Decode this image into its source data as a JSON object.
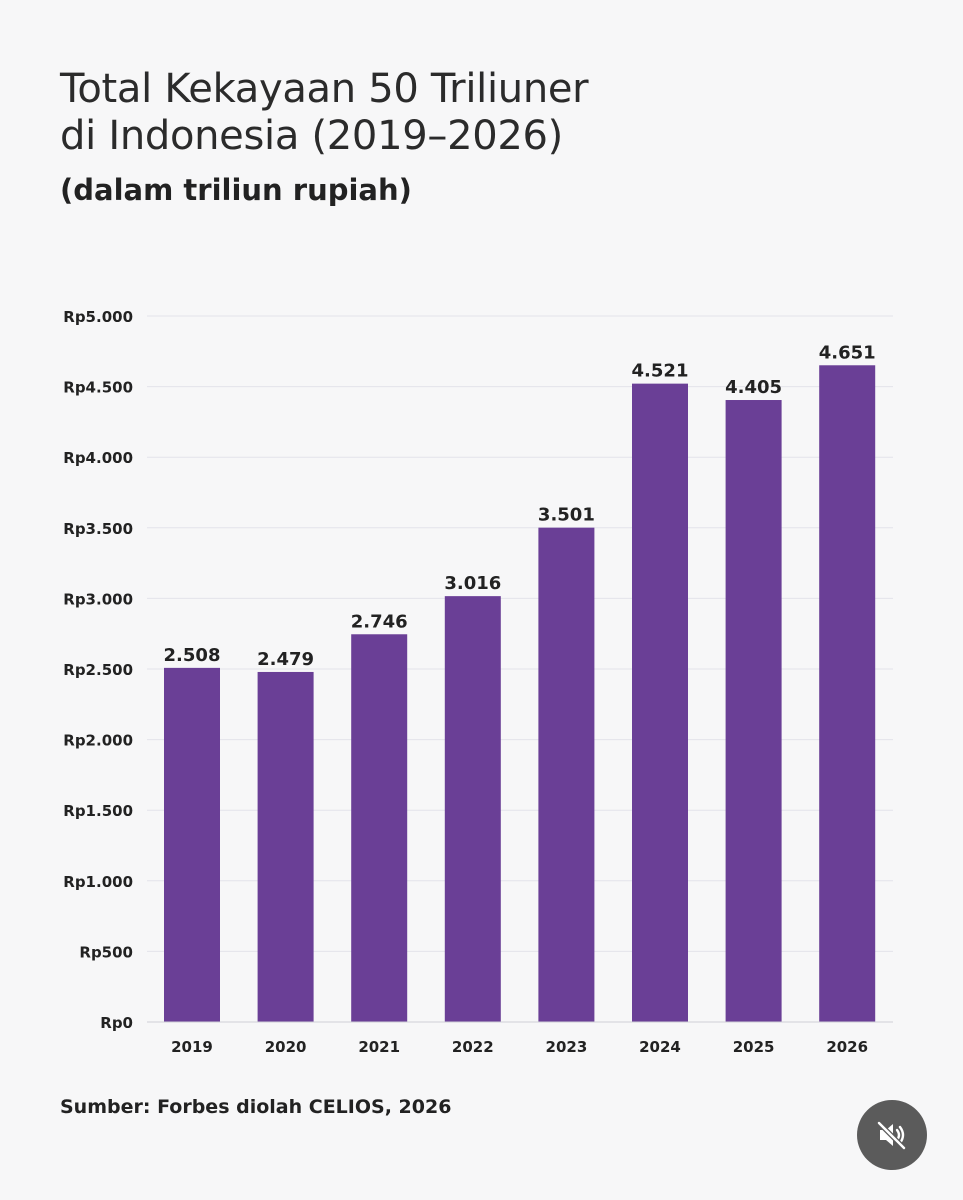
{
  "header": {
    "title_line1": "Total Kekayaan 50 Triliuner",
    "title_line2": "di Indonesia (2019–2026)",
    "subtitle": "(dalam triliun rupiah)"
  },
  "footer": {
    "source": "Sumber: Forbes diolah CELIOS, 2026"
  },
  "controls": {
    "mute_icon": "speaker-muted-icon"
  },
  "colors": {
    "bar": "#6a3f96",
    "text": "#222222",
    "grid": "#e3e3ea",
    "background": "#f7f7f8",
    "mute_button": "#5b5b5b"
  },
  "chart_data": {
    "type": "bar",
    "title": "Total Kekayaan 50 Triliuner di Indonesia (2019–2026)",
    "subtitle": "(dalam triliun rupiah)",
    "categories": [
      "2019",
      "2020",
      "2021",
      "2022",
      "2023",
      "2024",
      "2025",
      "2026"
    ],
    "values": [
      2508,
      2479,
      2746,
      3016,
      3501,
      4521,
      4405,
      4651
    ],
    "data_labels": [
      "2.508",
      "2.479",
      "2.746",
      "3.016",
      "3.501",
      "4.521",
      "4.405",
      "4.651"
    ],
    "y_ticks": [
      0,
      500,
      1000,
      1500,
      2000,
      2500,
      3000,
      3500,
      4000,
      4500,
      5000
    ],
    "y_tick_labels": [
      "Rp0",
      "Rp500",
      "Rp1.000",
      "Rp1.500",
      "Rp2.000",
      "Rp2.500",
      "Rp3.000",
      "Rp3.500",
      "Rp4.000",
      "Rp4.500",
      "Rp5.000"
    ],
    "ylim": [
      0,
      5000
    ],
    "xlabel": "",
    "ylabel": "",
    "grid": true,
    "legend": "none"
  }
}
